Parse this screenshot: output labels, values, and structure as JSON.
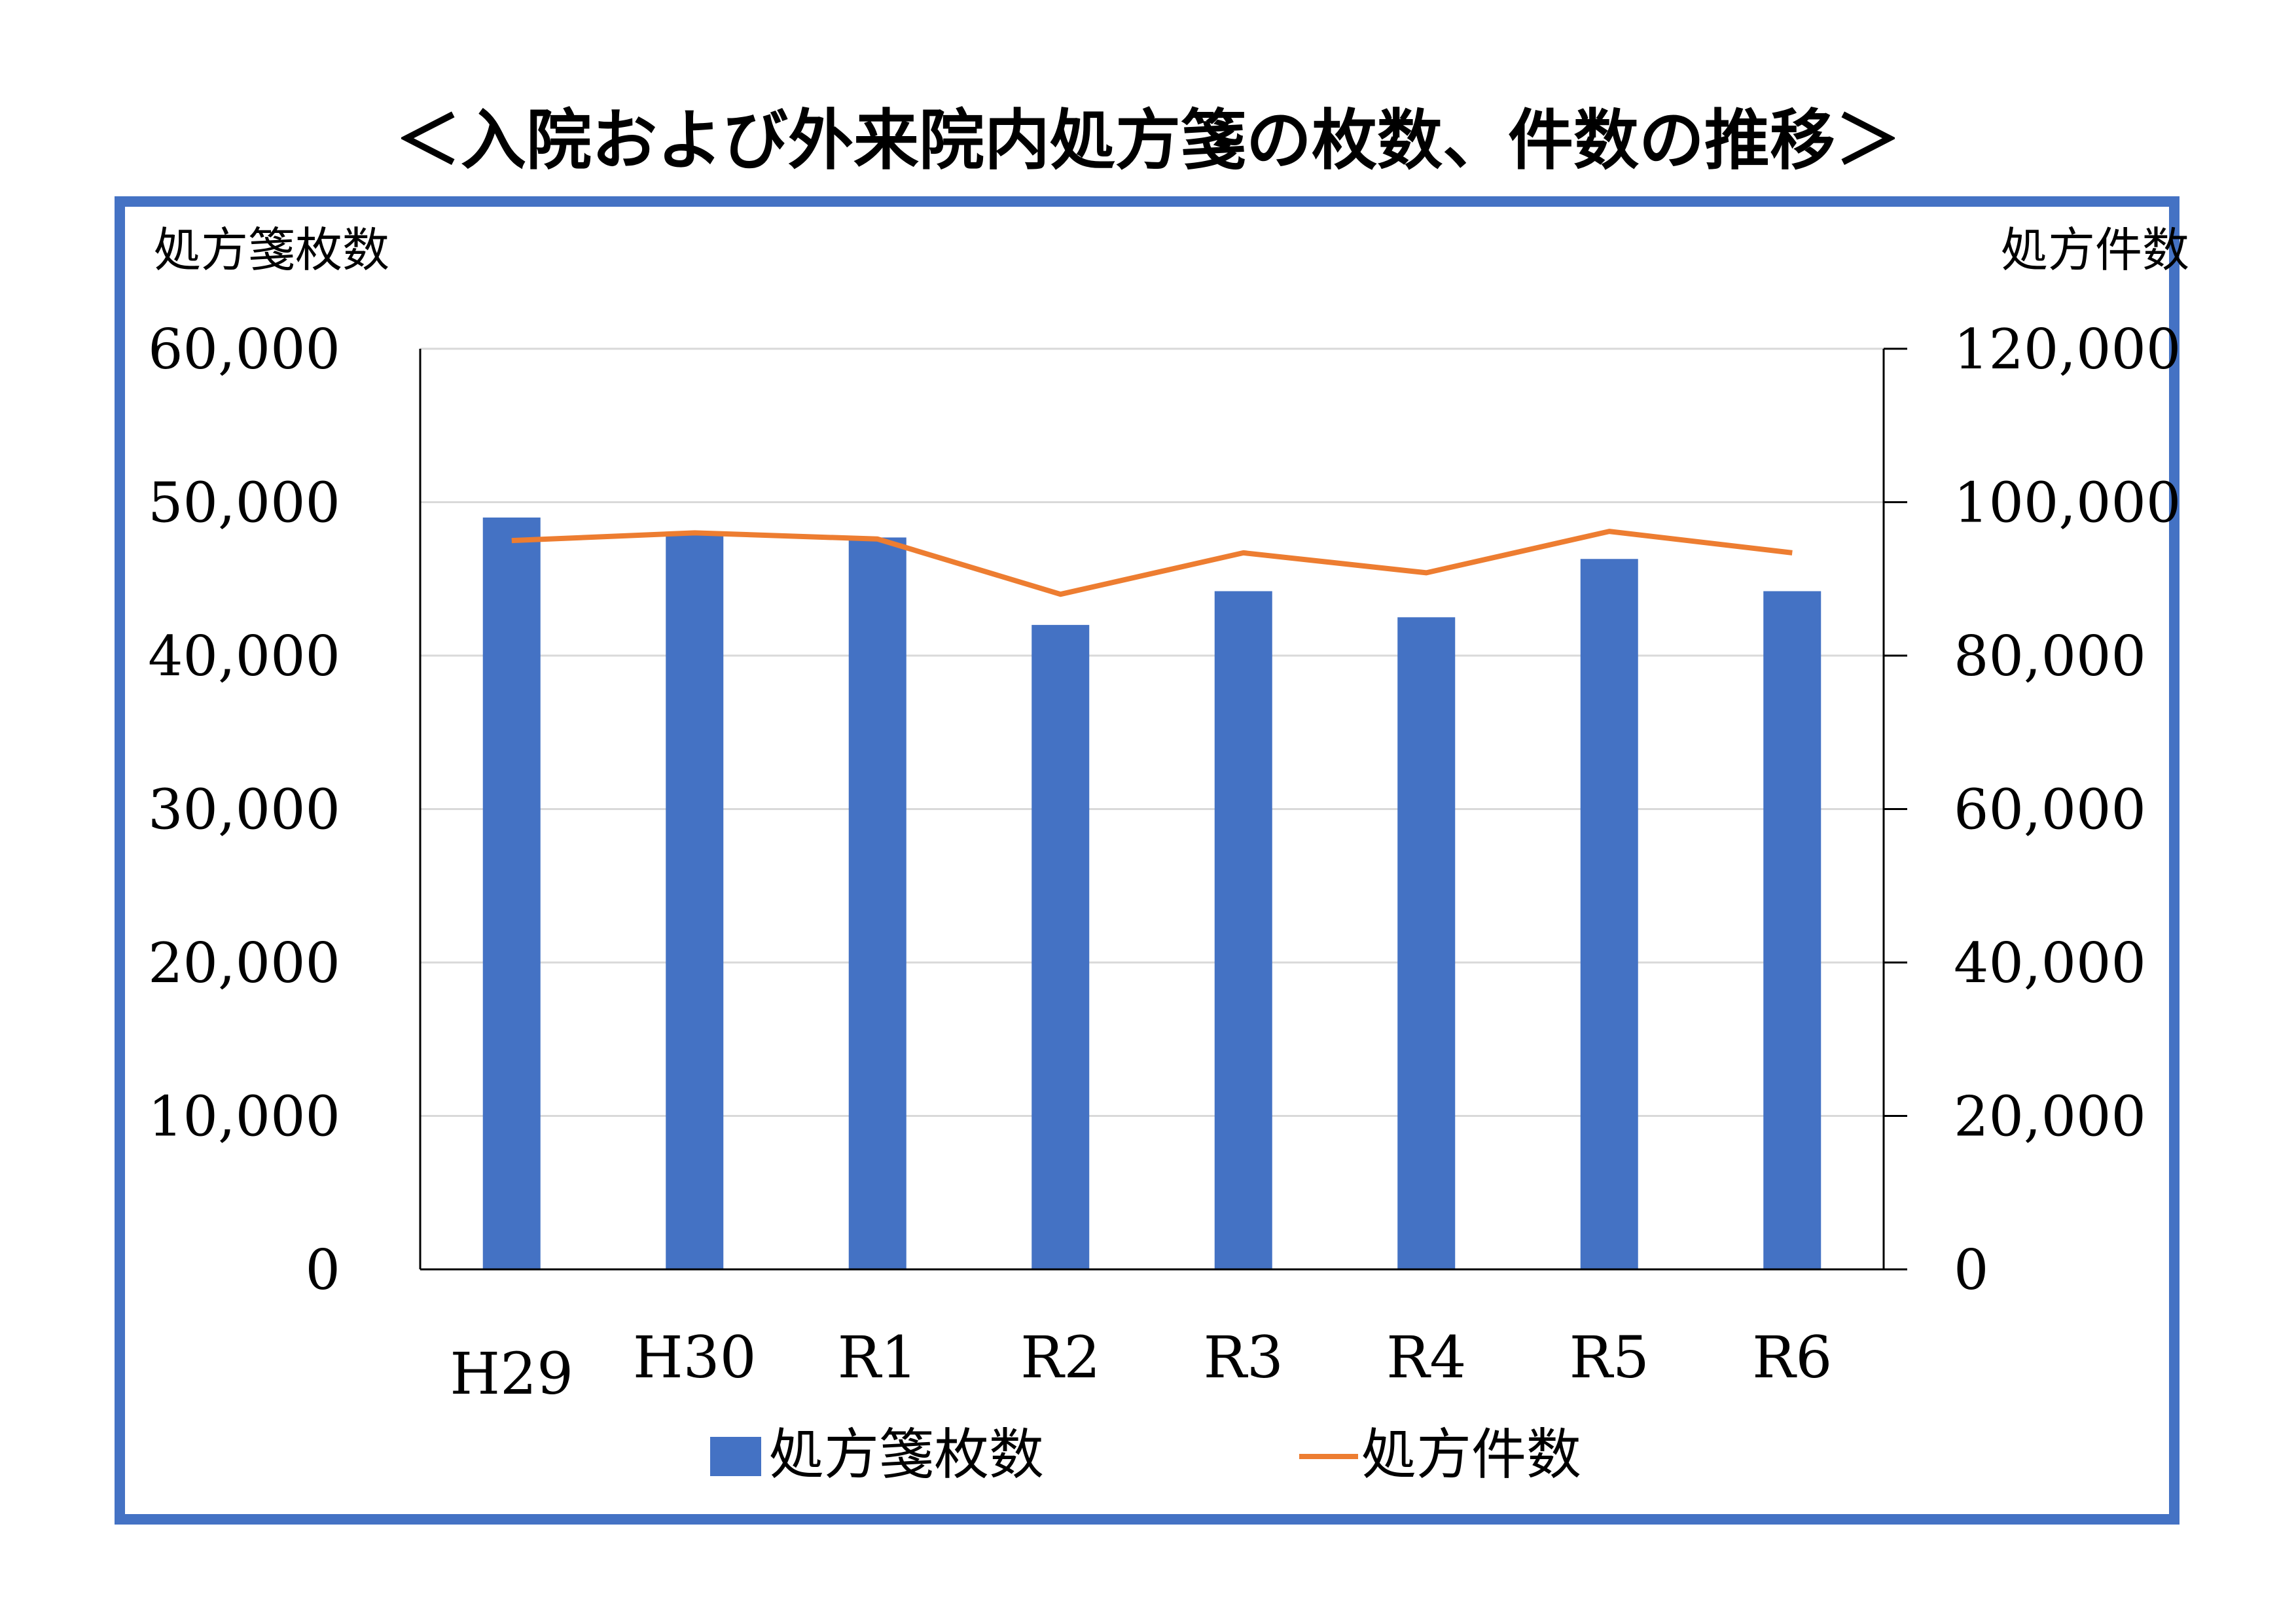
{
  "title": "＜入院および外来院内処方箋の枚数、件数の推移＞",
  "colors": {
    "frame": "#4472c4",
    "bar": "#4472c4",
    "line": "#ed7d31",
    "grid": "#d9d9d9",
    "axis": "#000000"
  },
  "chart_data": {
    "type": "bar",
    "categories": [
      "H29",
      "H30",
      "R1",
      "R2",
      "R3",
      "R4",
      "R5",
      "R6"
    ],
    "series": [
      {
        "name": "処方箋枚数",
        "type": "bar",
        "axis": "left",
        "values": [
          49000,
          48000,
          47700,
          42000,
          44200,
          42500,
          46300,
          44200
        ]
      },
      {
        "name": "処方件数",
        "type": "line",
        "axis": "right",
        "values": [
          95000,
          96000,
          95200,
          88000,
          93400,
          90800,
          96200,
          93400
        ]
      }
    ],
    "ylabel_left": "処方箋枚数",
    "ylabel_right": "処方件数",
    "ylim_left": [
      0,
      60000
    ],
    "ylim_right": [
      0,
      120000
    ],
    "yticks_left": [
      "0",
      "10,000",
      "20,000",
      "30,000",
      "40,000",
      "50,000",
      "60,000"
    ],
    "yticks_right": [
      "0",
      "20,000",
      "40,000",
      "60,000",
      "80,000",
      "100,000",
      "120,000"
    ],
    "grid": true,
    "legend": "bottom"
  }
}
